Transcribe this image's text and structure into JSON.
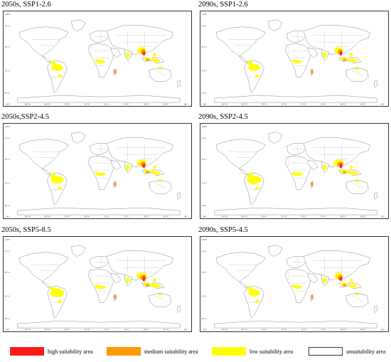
{
  "panels": [
    {
      "title": "2050s, SSP1-2.6",
      "intensity": "low"
    },
    {
      "title": "2090s, SSP1-2.6",
      "intensity": "low"
    },
    {
      "title": "2050s,SSP2-4.5",
      "intensity": "mid"
    },
    {
      "title": "2090s, SSP2-4.5",
      "intensity": "high"
    },
    {
      "title": "2050s, SSP5-8.5",
      "intensity": "high"
    },
    {
      "title": "2090s, SSP5-4.5",
      "intensity": "low"
    }
  ],
  "axis": {
    "lat_labels": [
      "100°N",
      "70° N",
      "30° N",
      "10° N",
      "50° S"
    ],
    "lon_labels": [
      "180°",
      "140° W",
      "100° W",
      "60° W",
      "20° W",
      "20° E",
      "60° E",
      "100° E",
      "140° E",
      "180°"
    ]
  },
  "legend": [
    {
      "label": "high suitability area",
      "color": "#ff1a1a",
      "border": "#ff1a1a"
    },
    {
      "label": "medium suitability area",
      "color": "#ff9900",
      "border": "#ff9900"
    },
    {
      "label": "low suitability area",
      "color": "#ffff00",
      "border": "#ffff00"
    },
    {
      "label": "unsuitability area",
      "color": "#ffffff",
      "border": "#333333"
    }
  ],
  "colors": {
    "high": "#ff1a1a",
    "medium": "#ff9900",
    "low": "#ffff00",
    "land_outline": "#777777"
  }
}
